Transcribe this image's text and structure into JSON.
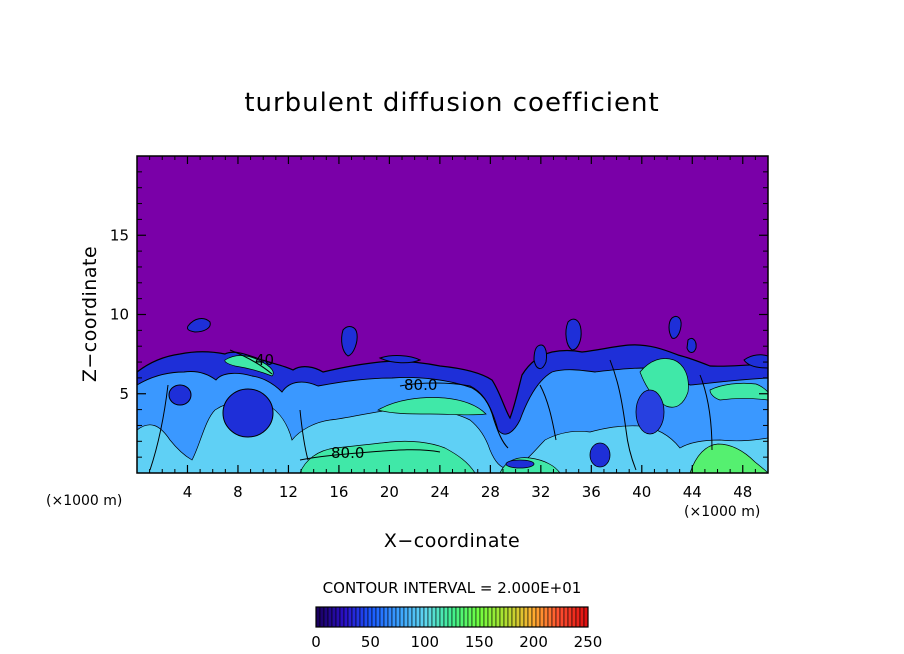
{
  "chart_data": {
    "type": "heatmap",
    "title": "turbulent diffusion coefficient",
    "xlabel": "X−coordinate",
    "ylabel": "Z−coordinate",
    "x_unit": "(×1000 m)",
    "x_unit_right": "(×1000 m)",
    "xlim": [
      0,
      50
    ],
    "ylim": [
      0,
      20
    ],
    "x_ticks": [
      4,
      8,
      12,
      16,
      20,
      24,
      28,
      32,
      36,
      40,
      44,
      48
    ],
    "y_ticks": [
      5,
      10,
      15
    ],
    "contour_interval_text": "CONTOUR INTERVAL = 2.000E+01",
    "contour_labels": [
      {
        "text": "80.0",
        "x": 21.5,
        "z": 5.6
      },
      {
        "text": "80.0",
        "x": 16.5,
        "z": 1.3
      },
      {
        "text": "40",
        "x": 10.0,
        "z": 7.2
      }
    ],
    "colorbar": {
      "min": 0,
      "max": 250,
      "ticks": [
        0,
        50,
        100,
        150,
        200,
        250
      ],
      "colors": [
        "#1a0060",
        "#2b10c8",
        "#1a5aff",
        "#3aa0ff",
        "#60d8f0",
        "#40f090",
        "#70ff40",
        "#b0e030",
        "#ffb030",
        "#ff5030",
        "#e01010"
      ]
    },
    "colors": {
      "background_field": "#7a00a8",
      "low": "#1a2ad0",
      "mid": "#3a90ff",
      "high": "#40e8b0",
      "peak": "#60ff60"
    }
  }
}
